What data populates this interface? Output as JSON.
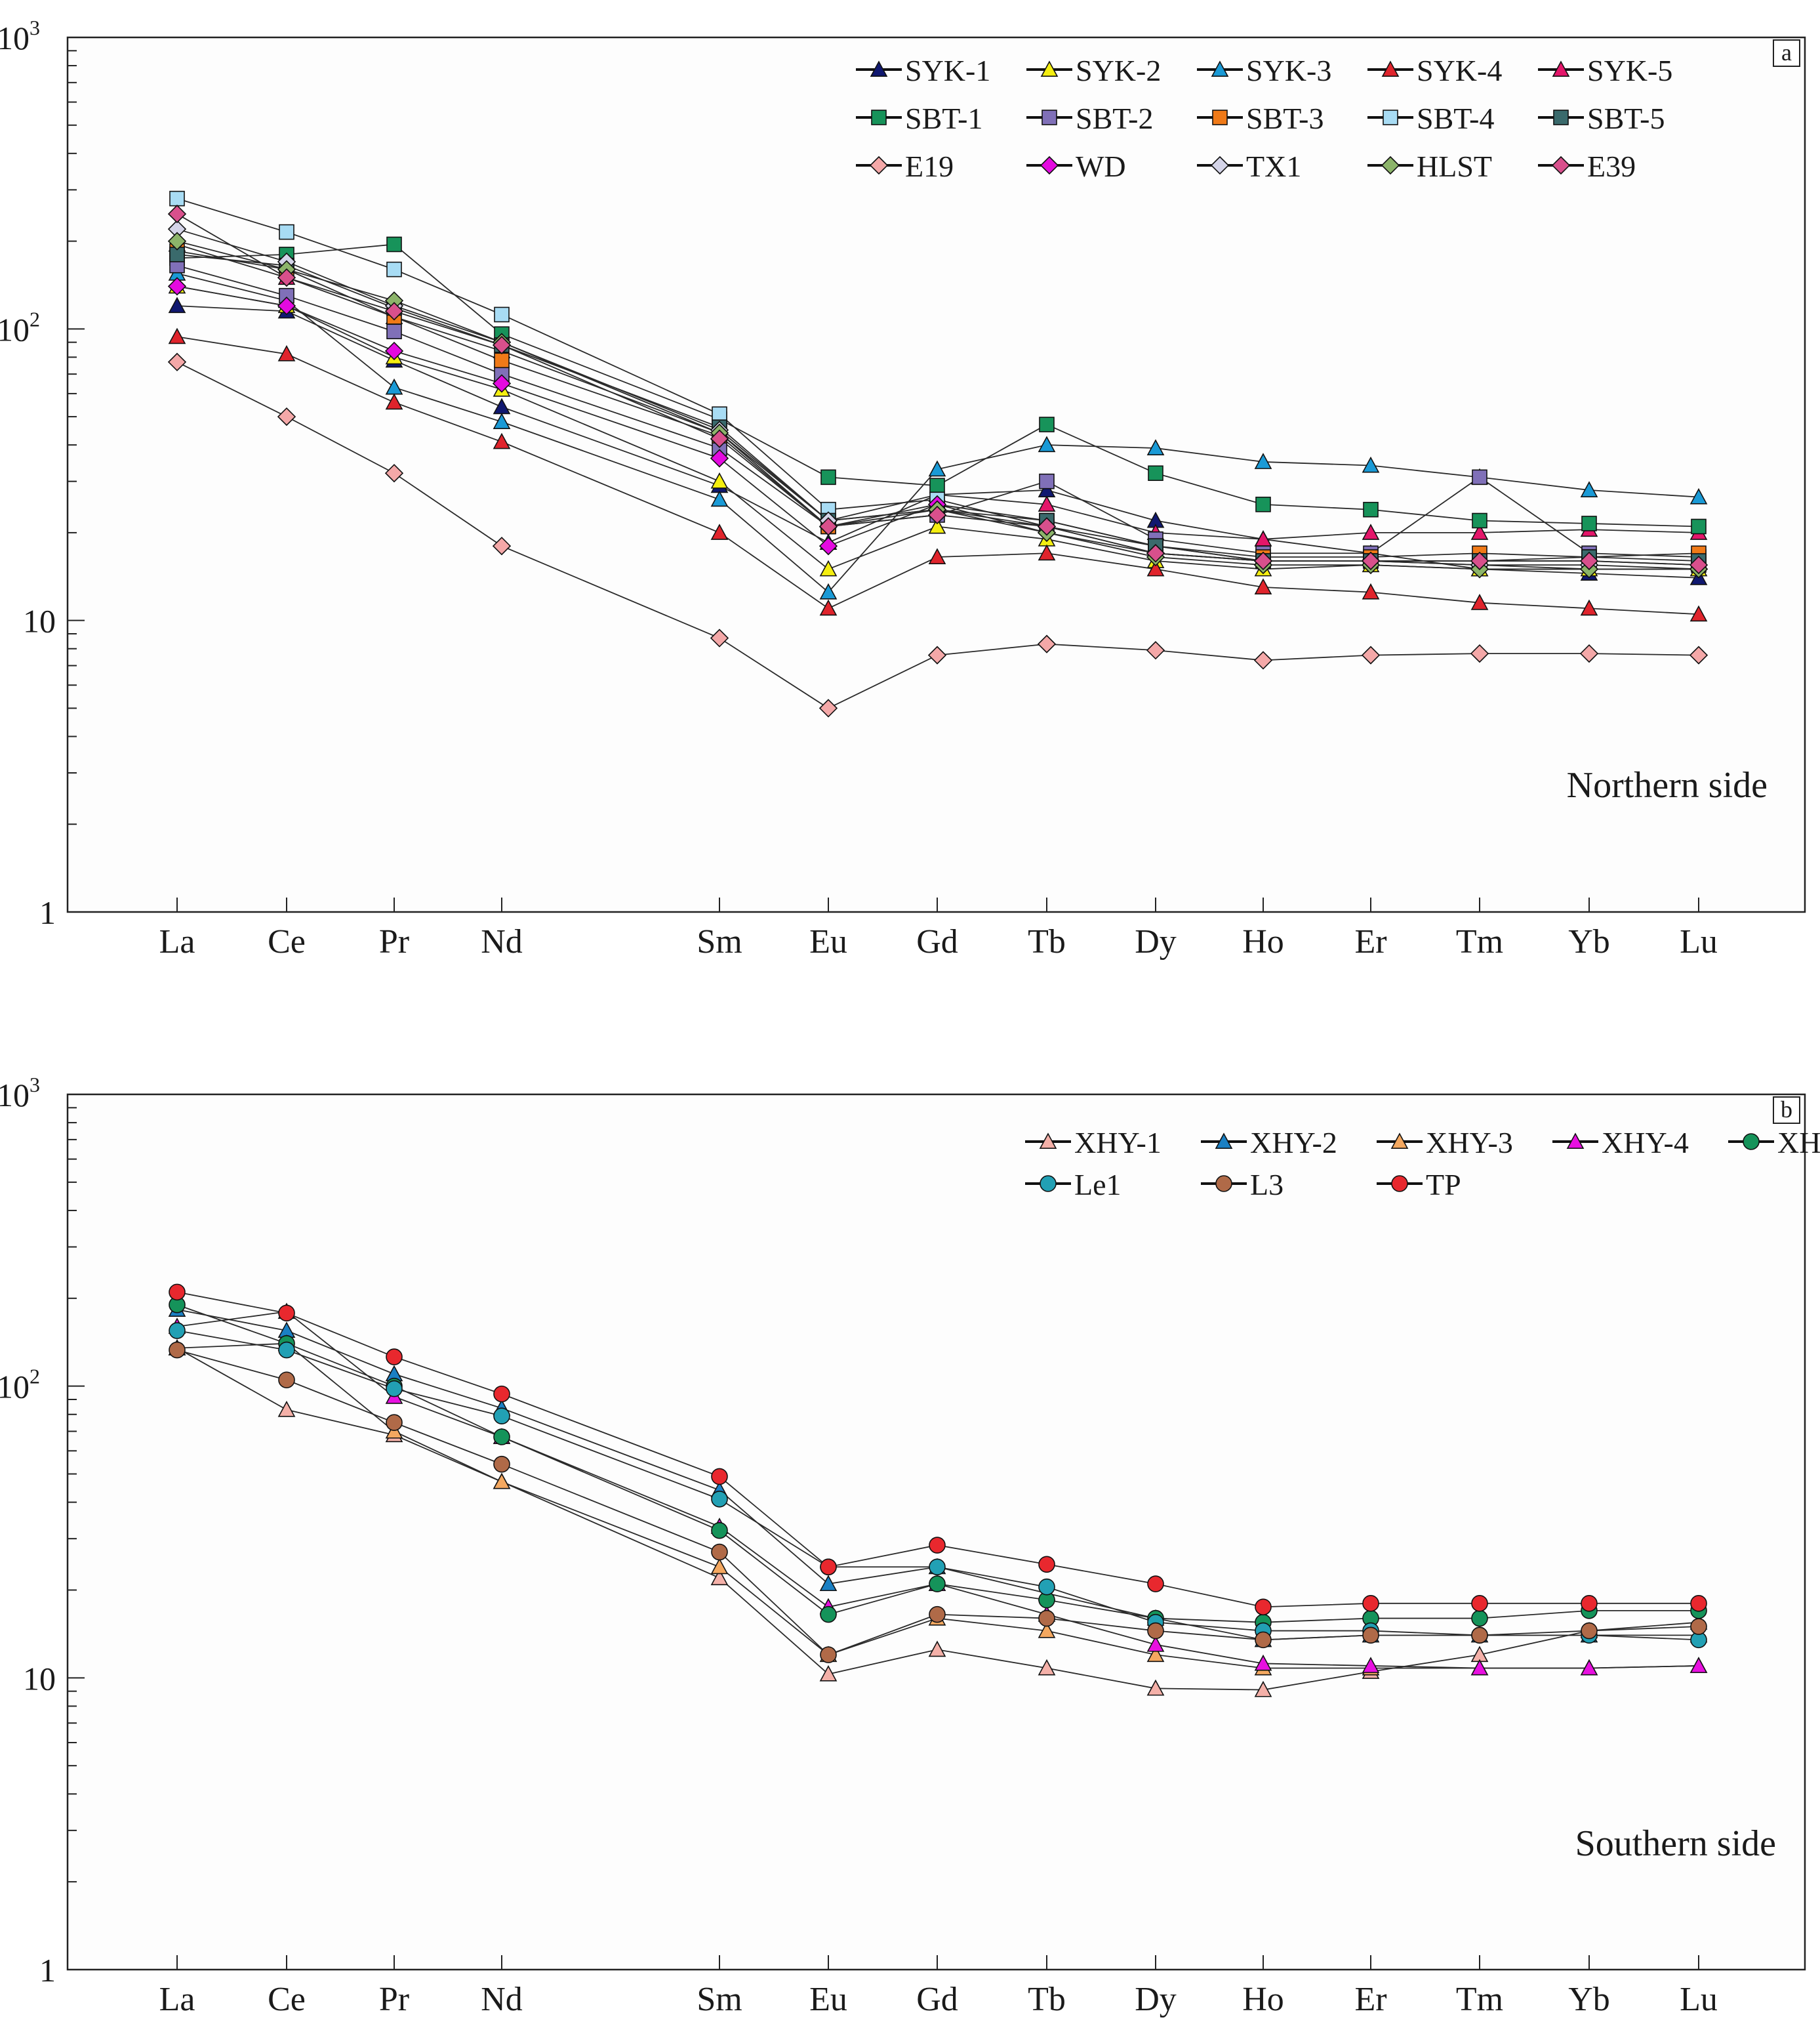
{
  "chart_data": [
    {
      "type": "line",
      "panel_label": "a",
      "annotation": "Northern side",
      "yscale": "log",
      "ylim": [
        1,
        1000
      ],
      "ytick_labels": [
        "1",
        "10",
        "10",
        "10"
      ],
      "ytick_exponents": [
        "",
        "",
        "2",
        "3"
      ],
      "xlabel": "",
      "ylabel": "",
      "legend_position": "top-right",
      "categories": [
        "La",
        "Ce",
        "Pr",
        "Nd",
        "Sm",
        "Eu",
        "Gd",
        "Tb",
        "Dy",
        "Ho",
        "Er",
        "Tm",
        "Yb",
        "Lu"
      ],
      "x_positions": [
        1,
        2,
        3,
        4,
        6,
        7,
        8,
        9,
        10,
        11,
        12,
        13,
        14,
        15
      ],
      "series": [
        {
          "name": "SYK-1",
          "marker": "triangle",
          "color": "#101870",
          "values": [
            120,
            115,
            78,
            54,
            29,
            18.5,
            27,
            28,
            22,
            19,
            17,
            15,
            14.5,
            14
          ]
        },
        {
          "name": "SYK-2",
          "marker": "triangle",
          "color": "#f4ee10",
          "values": [
            140,
            120,
            80,
            62,
            30,
            15,
            21,
            19,
            16,
            15,
            15.5,
            15,
            15,
            15
          ]
        },
        {
          "name": "SYK-3",
          "marker": "triangle",
          "color": "#1a9ad6",
          "values": [
            155,
            125,
            63,
            48,
            26,
            12.5,
            33,
            40,
            39,
            35,
            34,
            31,
            28,
            26.5
          ]
        },
        {
          "name": "SYK-4",
          "marker": "triangle",
          "color": "#e0242c",
          "values": [
            94,
            82,
            56,
            41,
            20,
            11,
            16.5,
            17,
            15,
            13,
            12.5,
            11.5,
            11,
            10.5
          ]
        },
        {
          "name": "SYK-5",
          "marker": "triangle",
          "color": "#e4166a",
          "values": [
            195,
            150,
            110,
            84,
            44,
            22,
            27,
            25,
            20,
            19,
            20,
            20,
            20.5,
            20
          ]
        },
        {
          "name": "SBT-1",
          "marker": "square",
          "color": "#17935a",
          "values": [
            175,
            180,
            195,
            96,
            49,
            31,
            29,
            47,
            32,
            25,
            24,
            22,
            21.5,
            21
          ]
        },
        {
          "name": "SBT-2",
          "marker": "square",
          "color": "#8070b8",
          "values": [
            165,
            130,
            98,
            70,
            39,
            21,
            23,
            30,
            19,
            17,
            17,
            31,
            17,
            16.5
          ]
        },
        {
          "name": "SBT-3",
          "marker": "square",
          "color": "#f07a18",
          "values": [
            185,
            160,
            110,
            78,
            43,
            21,
            25,
            22,
            18,
            16.5,
            16.5,
            17,
            16.5,
            17
          ]
        },
        {
          "name": "SBT-4",
          "marker": "square",
          "color": "#a8dcf4",
          "values": [
            280,
            215,
            160,
            112,
            51,
            24,
            26,
            21,
            18,
            16,
            16,
            16,
            16,
            15.5
          ]
        },
        {
          "name": "SBT-5",
          "marker": "square",
          "color": "#3a6a6c",
          "values": [
            180,
            165,
            118,
            88,
            46,
            22,
            24,
            22,
            18,
            16,
            16,
            16,
            16.5,
            16
          ]
        },
        {
          "name": "E19",
          "marker": "diamond",
          "color": "#f4a8a8",
          "values": [
            77,
            50,
            32,
            18,
            8.7,
            5,
            7.6,
            8.3,
            7.9,
            7.3,
            7.6,
            7.7,
            7.7,
            7.6
          ]
        },
        {
          "name": "WD",
          "marker": "diamond",
          "color": "#e40ae0",
          "values": [
            140,
            120,
            84,
            65,
            36,
            18,
            25,
            20,
            17,
            16,
            16,
            15.5,
            15,
            15
          ]
        },
        {
          "name": "TX1",
          "marker": "diamond",
          "color": "#d4d4e8",
          "values": [
            220,
            170,
            120,
            90,
            45,
            22,
            24,
            21,
            17,
            16,
            16,
            15.5,
            15.5,
            15
          ]
        },
        {
          "name": "HLST",
          "marker": "diamond",
          "color": "#8cb46a",
          "values": [
            200,
            160,
            125,
            90,
            44,
            21,
            24,
            20,
            16.5,
            15.5,
            15.5,
            15,
            15,
            15
          ]
        },
        {
          "name": "E39",
          "marker": "diamond",
          "color": "#d8508c",
          "values": [
            248,
            150,
            115,
            88,
            42,
            21,
            23,
            21,
            17,
            16,
            16,
            16,
            16,
            15.5
          ]
        }
      ]
    },
    {
      "type": "line",
      "panel_label": "b",
      "annotation": "Southern side",
      "yscale": "log",
      "ylim": [
        1,
        1000
      ],
      "ytick_labels": [
        "1",
        "10",
        "10",
        "10"
      ],
      "ytick_exponents": [
        "",
        "",
        "2",
        "3"
      ],
      "xlabel": "",
      "ylabel": "",
      "legend_position": "top-right",
      "categories": [
        "La",
        "Ce",
        "Pr",
        "Nd",
        "Sm",
        "Eu",
        "Gd",
        "Tb",
        "Dy",
        "Ho",
        "Er",
        "Tm",
        "Yb",
        "Lu"
      ],
      "x_positions": [
        1,
        2,
        3,
        4,
        6,
        7,
        8,
        9,
        10,
        11,
        12,
        13,
        14,
        15
      ],
      "series": [
        {
          "name": "XHY-1",
          "marker": "triangle",
          "color": "#f4b0a8",
          "values": [
            135,
            83,
            68,
            47,
            22,
            10.3,
            12.5,
            10.8,
            9.2,
            9.1,
            10.5,
            12,
            14.5,
            15.5
          ]
        },
        {
          "name": "XHY-2",
          "marker": "triangle",
          "color": "#1a80c4",
          "values": [
            183,
            155,
            110,
            84,
            44,
            21,
            24,
            19.5,
            16,
            13.5,
            14,
            14,
            14,
            14
          ]
        },
        {
          "name": "XHY-3",
          "marker": "triangle",
          "color": "#f4a860",
          "values": [
            135,
            140,
            70,
            47,
            24,
            12,
            16,
            14.5,
            12,
            10.8,
            10.8,
            10.8,
            10.8,
            11
          ]
        },
        {
          "name": "XHY-4",
          "marker": "triangle",
          "color": "#e810e0",
          "values": [
            160,
            180,
            92,
            67,
            33,
            17.5,
            21,
            16.5,
            13,
            11.2,
            11,
            10.8,
            10.8,
            11
          ]
        },
        {
          "name": "XHG",
          "marker": "circle",
          "color": "#15935a",
          "values": [
            190,
            140,
            100,
            67,
            32,
            16.5,
            21,
            18.5,
            16,
            15.5,
            16,
            16,
            17,
            17
          ]
        },
        {
          "name": "Le1",
          "marker": "circle",
          "color": "#22a0b4",
          "values": [
            155,
            133,
            98,
            79,
            41,
            24,
            24,
            20.5,
            15.5,
            14.5,
            14.5,
            14,
            14,
            13.5
          ]
        },
        {
          "name": "L3",
          "marker": "circle",
          "color": "#b06a48",
          "values": [
            133,
            105,
            75,
            54,
            27,
            12,
            16.5,
            16,
            14.5,
            13.5,
            14,
            14,
            14.5,
            15
          ]
        },
        {
          "name": "TP",
          "marker": "circle",
          "color": "#e8282e",
          "values": [
            210,
            178,
            126,
            94,
            49,
            24,
            28.5,
            24.5,
            21,
            17.5,
            18,
            18,
            18,
            18
          ]
        }
      ]
    }
  ]
}
